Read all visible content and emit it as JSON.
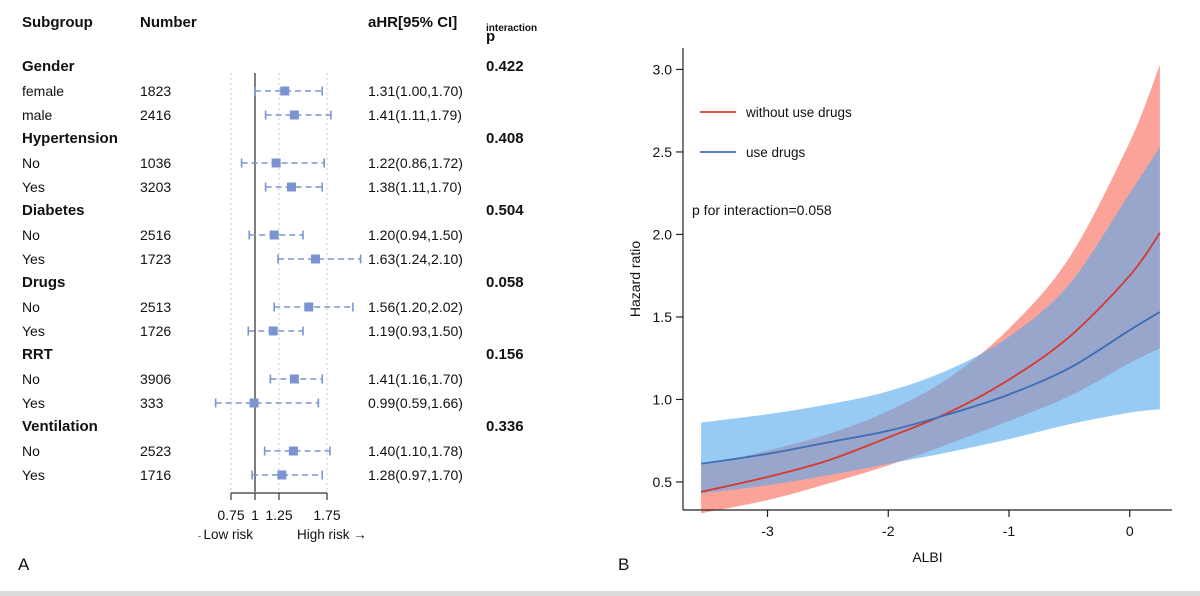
{
  "figure": {
    "panel_a_label": "A",
    "panel_b_label": "B"
  },
  "chart_data": [
    {
      "type": "forest",
      "header": {
        "subgroup": "Subgroup",
        "number": "Number",
        "ahr": "aHR[95% CI]",
        "p_label": "p",
        "p_sub": "interaction"
      },
      "rows": [
        {
          "group": "Gender",
          "p_interaction": "0.422"
        },
        {
          "label": "female",
          "number": "1823",
          "est": 1.31,
          "lo": 1.0,
          "hi": 1.7,
          "ahr_text": "1.31(1.00,1.70)"
        },
        {
          "label": "male",
          "number": "2416",
          "est": 1.41,
          "lo": 1.11,
          "hi": 1.79,
          "ahr_text": "1.41(1.11,1.79)"
        },
        {
          "group": "Hypertension",
          "p_interaction": "0.408"
        },
        {
          "label": "No",
          "number": "1036",
          "est": 1.22,
          "lo": 0.86,
          "hi": 1.72,
          "ahr_text": "1.22(0.86,1.72)"
        },
        {
          "label": "Yes",
          "number": "3203",
          "est": 1.38,
          "lo": 1.11,
          "hi": 1.7,
          "ahr_text": "1.38(1.11,1.70)"
        },
        {
          "group": "Diabetes",
          "p_interaction": "0.504"
        },
        {
          "label": "No",
          "number": "2516",
          "est": 1.2,
          "lo": 0.94,
          "hi": 1.5,
          "ahr_text": "1.20(0.94,1.50)"
        },
        {
          "label": "Yes",
          "number": "1723",
          "est": 1.63,
          "lo": 1.24,
          "hi": 2.1,
          "ahr_text": "1.63(1.24,2.10)"
        },
        {
          "group": "Drugs",
          "p_interaction": "0.058"
        },
        {
          "label": "No",
          "number": "2513",
          "est": 1.56,
          "lo": 1.2,
          "hi": 2.02,
          "ahr_text": "1.56(1.20,2.02)"
        },
        {
          "label": "Yes",
          "number": "1726",
          "est": 1.19,
          "lo": 0.93,
          "hi": 1.5,
          "ahr_text": "1.19(0.93,1.50)"
        },
        {
          "group": "RRT",
          "p_interaction": "0.156"
        },
        {
          "label": "No",
          "number": "3906",
          "est": 1.41,
          "lo": 1.16,
          "hi": 1.7,
          "ahr_text": "1.41(1.16,1.70)"
        },
        {
          "label": "Yes",
          "number": "333",
          "est": 0.99,
          "lo": 0.59,
          "hi": 1.66,
          "ahr_text": "0.99(0.59,1.66)"
        },
        {
          "group": "Ventilation",
          "p_interaction": "0.336"
        },
        {
          "label": "No",
          "number": "2523",
          "est": 1.4,
          "lo": 1.1,
          "hi": 1.78,
          "ahr_text": "1.40(1.10,1.78)"
        },
        {
          "label": "Yes",
          "number": "1716",
          "est": 1.28,
          "lo": 0.97,
          "hi": 1.7,
          "ahr_text": "1.28(0.97,1.70)"
        }
      ],
      "axis": {
        "tick_values": [
          0.75,
          1,
          1.25,
          1.75
        ],
        "tick_labels": [
          "0.75",
          "1",
          "1.25",
          "1.75"
        ],
        "low_label": "←Low risk",
        "high_label": "High risk →"
      },
      "colors": {
        "marker": "#7b94d1",
        "ref_line": "#3a3a3a",
        "grid": "#c8c8c8",
        "axis": "#333333"
      }
    },
    {
      "type": "line",
      "xlabel": "ALBI",
      "ylabel": "Hazard ratio",
      "annotation": "p for interaction=0.058",
      "xlim": [
        -3.7,
        0.35
      ],
      "ylim": [
        0.33,
        3.13
      ],
      "x_tick_values": [
        -3,
        -2,
        -1,
        0
      ],
      "x_tick_labels": [
        "-3",
        "-2",
        "-1",
        "0"
      ],
      "y_tick_values": [
        0.5,
        1.0,
        1.5,
        2.0,
        2.5,
        3.0
      ],
      "y_tick_labels": [
        "0.5",
        "1.0",
        "1.5",
        "2.0",
        "2.5",
        "3.0"
      ],
      "legend_position": "top-left",
      "x": [
        -3.55,
        -3.0,
        -2.5,
        -2.0,
        -1.5,
        -1.0,
        -0.5,
        0.0,
        0.25
      ],
      "series": [
        {
          "name": "without use drugs",
          "color": "#d6392e",
          "band_color": "rgba(250,106,90,0.62)",
          "values": [
            0.44,
            0.53,
            0.63,
            0.77,
            0.92,
            1.12,
            1.38,
            1.75,
            2.01
          ],
          "lower": [
            0.31,
            0.39,
            0.49,
            0.6,
            0.73,
            0.87,
            1.02,
            1.22,
            1.31
          ],
          "upper": [
            0.6,
            0.69,
            0.79,
            0.93,
            1.13,
            1.43,
            1.86,
            2.56,
            3.03
          ]
        },
        {
          "name": "use drugs",
          "color": "#3e6db5",
          "band_color": "rgba(84,168,235,0.60)",
          "values": [
            0.61,
            0.67,
            0.74,
            0.81,
            0.91,
            1.03,
            1.19,
            1.42,
            1.53
          ],
          "lower": [
            0.43,
            0.48,
            0.54,
            0.61,
            0.68,
            0.76,
            0.85,
            0.92,
            0.94
          ],
          "upper": [
            0.86,
            0.91,
            0.97,
            1.05,
            1.18,
            1.38,
            1.7,
            2.25,
            2.53
          ]
        }
      ]
    }
  ]
}
